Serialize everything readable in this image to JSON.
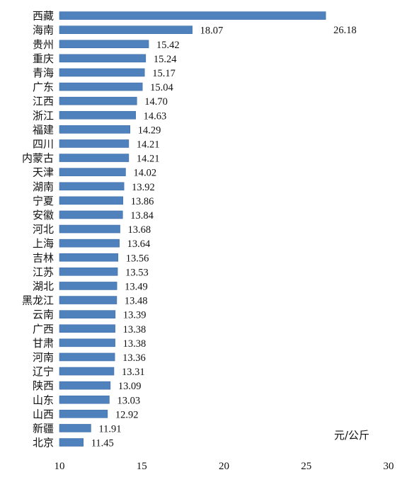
{
  "chart_data": {
    "type": "bar",
    "orientation": "horizontal",
    "categories": [
      "西藏",
      "海南",
      "贵州",
      "重庆",
      "青海",
      "广东",
      "江西",
      "浙江",
      "福建",
      "四川",
      "内蒙古",
      "天津",
      "湖南",
      "宁夏",
      "安徽",
      "河北",
      "上海",
      "吉林",
      "江苏",
      "湖北",
      "黑龙江",
      "云南",
      "广西",
      "甘肃",
      "河南",
      "辽宁",
      "陕西",
      "山东",
      "山西",
      "新疆",
      "北京"
    ],
    "values": [
      26.18,
      18.07,
      15.42,
      15.24,
      15.17,
      15.04,
      14.7,
      14.63,
      14.29,
      14.21,
      14.21,
      14.02,
      13.92,
      13.86,
      13.84,
      13.68,
      13.64,
      13.56,
      13.53,
      13.49,
      13.48,
      13.39,
      13.38,
      13.38,
      13.36,
      13.31,
      13.09,
      13.03,
      12.92,
      11.91,
      11.45
    ],
    "value_labels": [
      "26.18",
      "18.07",
      "15.42",
      "15.24",
      "15.17",
      "15.04",
      "14.70",
      "14.63",
      "14.29",
      "14.21",
      "14.21",
      "14.02",
      "13.92",
      "13.86",
      "13.84",
      "13.68",
      "13.64",
      "13.56",
      "13.53",
      "13.49",
      "13.48",
      "13.39",
      "13.38",
      "13.38",
      "13.36",
      "13.31",
      "13.09",
      "13.03",
      "12.92",
      "11.91",
      "11.45"
    ],
    "xlim": [
      10,
      30
    ],
    "x_ticks": [
      10,
      15,
      20,
      25,
      30
    ],
    "x_tick_labels": [
      "10",
      "15",
      "20",
      "25",
      "30"
    ],
    "unit_label": "元/公斤",
    "grid": false,
    "bar_color": "#4f81bd",
    "bar_edge_color": "#3f6fa9"
  }
}
